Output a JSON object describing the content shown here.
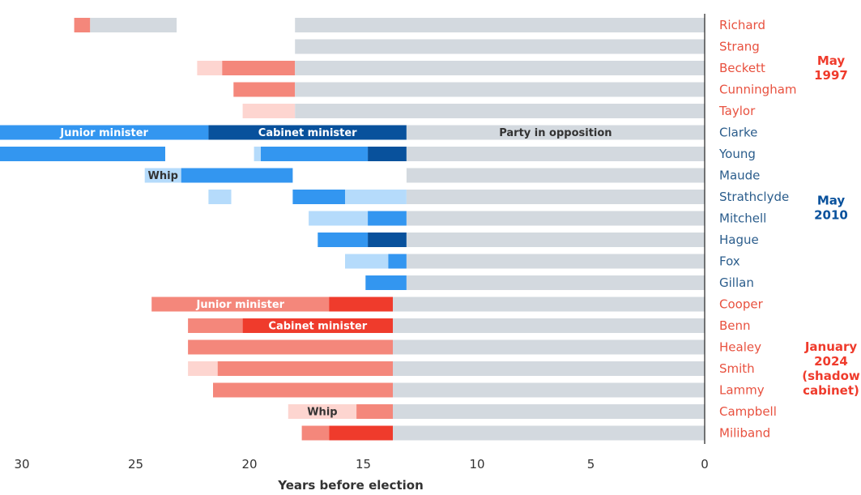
{
  "chart_data": {
    "type": "bar",
    "orientation": "horizontal-timeline",
    "xlabel": "Years before election",
    "xlim": [
      31,
      0
    ],
    "xticks": [
      30,
      25,
      20,
      15,
      10,
      5,
      0
    ],
    "colors": {
      "labour_dark": "#ef3b2c",
      "labour_mid": "#f4877b",
      "labour_light": "#fdd5d0",
      "con_dark": "#08519c",
      "con_mid": "#3396f0",
      "con_light": "#b5dbfb",
      "opposition": "#d3d9df",
      "labour_text": "#e8513f",
      "con_text": "#2b5d8c"
    },
    "groups": [
      {
        "label": "May 1997",
        "lines": [
          "May",
          "1997"
        ],
        "party": "labour",
        "rows": [
          0,
          4
        ]
      },
      {
        "label": "May 2010",
        "lines": [
          "May",
          "2010"
        ],
        "party": "con",
        "rows": [
          5,
          12
        ]
      },
      {
        "label": "January 2024 (shadow cabinet)",
        "lines": [
          "January",
          "2024",
          "(shadow",
          "cabinet)"
        ],
        "party": "labour",
        "rows": [
          13,
          19
        ]
      }
    ],
    "rows": [
      {
        "name": "Richard",
        "party": "labour",
        "segments": [
          {
            "start": 27.7,
            "end": 27.0,
            "role": "mid"
          },
          {
            "start": 27.0,
            "end": 23.2,
            "role": "opp"
          },
          {
            "start": 18.0,
            "end": 0,
            "role": "opp"
          }
        ]
      },
      {
        "name": "Strang",
        "party": "labour",
        "segments": [
          {
            "start": 18.0,
            "end": 0,
            "role": "opp"
          }
        ]
      },
      {
        "name": "Beckett",
        "party": "labour",
        "segments": [
          {
            "start": 22.3,
            "end": 21.2,
            "role": "light"
          },
          {
            "start": 21.2,
            "end": 18.0,
            "role": "mid"
          },
          {
            "start": 18.0,
            "end": 0,
            "role": "opp"
          }
        ]
      },
      {
        "name": "Cunningham",
        "party": "labour",
        "segments": [
          {
            "start": 20.7,
            "end": 18.0,
            "role": "mid"
          },
          {
            "start": 18.0,
            "end": 0,
            "role": "opp"
          }
        ]
      },
      {
        "name": "Taylor",
        "party": "labour",
        "segments": [
          {
            "start": 20.3,
            "end": 18.0,
            "role": "light"
          },
          {
            "start": 18.0,
            "end": 0,
            "role": "opp"
          }
        ]
      },
      {
        "name": "Clarke",
        "party": "con",
        "segments": [
          {
            "start": 31.0,
            "end": 21.8,
            "role": "mid",
            "label": "Junior minister"
          },
          {
            "start": 21.8,
            "end": 13.1,
            "role": "dark",
            "label": "Cabinet minister"
          },
          {
            "start": 13.1,
            "end": 0,
            "role": "opp",
            "label": "Party in opposition"
          }
        ]
      },
      {
        "name": "Young",
        "party": "con",
        "segments": [
          {
            "start": 31.0,
            "end": 23.7,
            "role": "mid"
          },
          {
            "start": 19.8,
            "end": 19.5,
            "role": "light"
          },
          {
            "start": 19.5,
            "end": 14.8,
            "role": "mid"
          },
          {
            "start": 14.8,
            "end": 13.1,
            "role": "dark"
          },
          {
            "start": 13.1,
            "end": 0,
            "role": "opp"
          }
        ]
      },
      {
        "name": "Maude",
        "party": "con",
        "segments": [
          {
            "start": 24.6,
            "end": 23.0,
            "role": "light",
            "label": "Whip"
          },
          {
            "start": 23.0,
            "end": 18.1,
            "role": "mid"
          },
          {
            "start": 13.1,
            "end": 0,
            "role": "opp"
          }
        ]
      },
      {
        "name": "Strathclyde",
        "party": "con",
        "segments": [
          {
            "start": 21.8,
            "end": 20.8,
            "role": "light"
          },
          {
            "start": 18.1,
            "end": 15.8,
            "role": "mid"
          },
          {
            "start": 15.8,
            "end": 13.1,
            "role": "light"
          },
          {
            "start": 13.1,
            "end": 0,
            "role": "opp"
          }
        ]
      },
      {
        "name": "Mitchell",
        "party": "con",
        "segments": [
          {
            "start": 17.4,
            "end": 14.8,
            "role": "light"
          },
          {
            "start": 14.8,
            "end": 13.1,
            "role": "mid"
          },
          {
            "start": 13.1,
            "end": 0,
            "role": "opp"
          }
        ]
      },
      {
        "name": "Hague",
        "party": "con",
        "segments": [
          {
            "start": 17.0,
            "end": 14.8,
            "role": "mid"
          },
          {
            "start": 14.8,
            "end": 13.1,
            "role": "dark"
          },
          {
            "start": 13.1,
            "end": 0,
            "role": "opp"
          }
        ]
      },
      {
        "name": "Fox",
        "party": "con",
        "segments": [
          {
            "start": 15.8,
            "end": 13.9,
            "role": "light"
          },
          {
            "start": 13.9,
            "end": 13.1,
            "role": "mid"
          },
          {
            "start": 13.1,
            "end": 0,
            "role": "opp"
          }
        ]
      },
      {
        "name": "Gillan",
        "party": "con",
        "segments": [
          {
            "start": 14.9,
            "end": 13.1,
            "role": "mid"
          },
          {
            "start": 13.1,
            "end": 0,
            "role": "opp"
          }
        ]
      },
      {
        "name": "Cooper",
        "party": "labour",
        "segments": [
          {
            "start": 24.3,
            "end": 16.5,
            "role": "mid",
            "label": "Junior minister"
          },
          {
            "start": 16.5,
            "end": 13.7,
            "role": "dark"
          },
          {
            "start": 13.7,
            "end": 0,
            "role": "opp"
          }
        ]
      },
      {
        "name": "Benn",
        "party": "labour",
        "segments": [
          {
            "start": 22.7,
            "end": 20.3,
            "role": "mid"
          },
          {
            "start": 20.3,
            "end": 13.7,
            "role": "dark",
            "label": "Cabinet minister"
          },
          {
            "start": 13.7,
            "end": 0,
            "role": "opp"
          }
        ]
      },
      {
        "name": "Healey",
        "party": "labour",
        "segments": [
          {
            "start": 22.7,
            "end": 13.7,
            "role": "mid"
          },
          {
            "start": 13.7,
            "end": 0,
            "role": "opp"
          }
        ]
      },
      {
        "name": "Smith",
        "party": "labour",
        "segments": [
          {
            "start": 22.7,
            "end": 21.4,
            "role": "light"
          },
          {
            "start": 21.4,
            "end": 13.7,
            "role": "mid"
          },
          {
            "start": 13.7,
            "end": 0,
            "role": "opp"
          }
        ]
      },
      {
        "name": "Lammy",
        "party": "labour",
        "segments": [
          {
            "start": 21.6,
            "end": 13.7,
            "role": "mid"
          },
          {
            "start": 13.7,
            "end": 0,
            "role": "opp"
          }
        ]
      },
      {
        "name": "Campbell",
        "party": "labour",
        "segments": [
          {
            "start": 18.3,
            "end": 15.3,
            "role": "light",
            "label": "Whip"
          },
          {
            "start": 15.3,
            "end": 13.7,
            "role": "mid"
          },
          {
            "start": 13.7,
            "end": 0,
            "role": "opp"
          }
        ]
      },
      {
        "name": "Miliband",
        "party": "labour",
        "segments": [
          {
            "start": 17.7,
            "end": 16.5,
            "role": "mid"
          },
          {
            "start": 16.5,
            "end": 13.7,
            "role": "dark"
          },
          {
            "start": 13.7,
            "end": 0,
            "role": "opp"
          }
        ]
      }
    ]
  }
}
